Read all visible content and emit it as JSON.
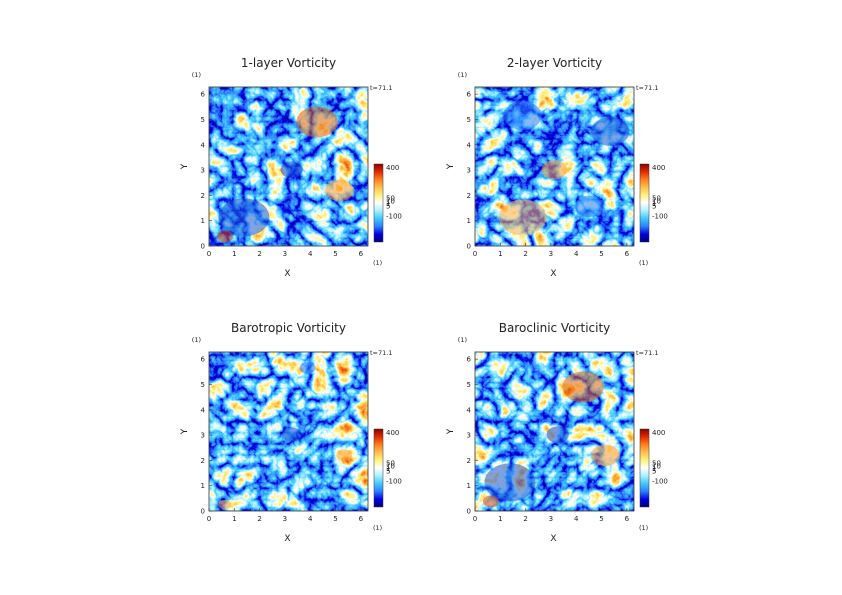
{
  "chart_data": [
    {
      "type": "heatmap",
      "title": "1-layer Vorticity",
      "xlabel": "X",
      "ylabel": "Y",
      "x_unit": "(1)",
      "y_unit": "(1)",
      "xlim": [
        0,
        6.283
      ],
      "ylim": [
        0,
        6.283
      ],
      "x_ticks": [
        "0",
        "1",
        "2",
        "3",
        "4",
        "5",
        "6"
      ],
      "y_ticks": [
        "0",
        "1",
        "2",
        "3",
        "4",
        "5",
        "6"
      ],
      "time_label": "t=71.1",
      "colorbar_labels": [
        "400",
        "50",
        "10",
        "1",
        "5",
        "-100"
      ],
      "colormap": [
        "#00007f",
        "#0000e0",
        "#2f7fff",
        "#3fc8ff",
        "#aaf0ff",
        "#ffffff",
        "#fff27f",
        "#ffc04d",
        "#ff7f1f",
        "#e02b00",
        "#8b0000"
      ],
      "features": [
        "positive eddies top-right",
        "negative vortex center",
        "negative filaments bottom-left"
      ]
    },
    {
      "type": "heatmap",
      "title": "2-layer Vorticity",
      "xlabel": "X",
      "ylabel": "Y",
      "x_unit": "(1)",
      "y_unit": "(1)",
      "xlim": [
        0,
        6.283
      ],
      "ylim": [
        0,
        6.283
      ],
      "x_ticks": [
        "0",
        "1",
        "2",
        "3",
        "4",
        "5",
        "6"
      ],
      "y_ticks": [
        "0",
        "1",
        "2",
        "3",
        "4",
        "5",
        "6"
      ],
      "time_label": "t=71.1",
      "colorbar_labels": [
        "400",
        "50",
        "10",
        "1",
        "5",
        "-100"
      ],
      "colormap": [
        "#00007f",
        "#0000e0",
        "#2f7fff",
        "#3fc8ff",
        "#aaf0ff",
        "#ffffff",
        "#fff27f",
        "#ffc04d",
        "#ff7f1f",
        "#e02b00",
        "#8b0000"
      ],
      "features": [
        "positive vortex center",
        "negative vortex right",
        "positive filaments bottom"
      ]
    },
    {
      "type": "heatmap",
      "title": "Barotropic Vorticity",
      "xlabel": "X",
      "ylabel": "Y",
      "x_unit": "(1)",
      "y_unit": "(1)",
      "xlim": [
        0,
        6.283
      ],
      "ylim": [
        0,
        6.283
      ],
      "x_ticks": [
        "0",
        "1",
        "2",
        "3",
        "4",
        "5",
        "6"
      ],
      "y_ticks": [
        "0",
        "1",
        "2",
        "3",
        "4",
        "5",
        "6"
      ],
      "time_label": "t=71.1",
      "colorbar_labels": [
        "400",
        "50",
        "10",
        "1",
        "5",
        "-100"
      ],
      "colormap": [
        "#00007f",
        "#0000e0",
        "#2f7fff",
        "#3fc8ff",
        "#aaf0ff",
        "#ffffff",
        "#fff27f",
        "#ffc04d",
        "#ff7f1f",
        "#e02b00",
        "#8b0000"
      ],
      "features": [
        "pale turbulent field",
        "negative vortex center",
        "small positive eddies"
      ]
    },
    {
      "type": "heatmap",
      "title": "Baroclinic Vorticity",
      "xlabel": "X",
      "ylabel": "Y",
      "x_unit": "(1)",
      "y_unit": "(1)",
      "xlim": [
        0,
        6.283
      ],
      "ylim": [
        0,
        6.283
      ],
      "x_ticks": [
        "0",
        "1",
        "2",
        "3",
        "4",
        "5",
        "6"
      ],
      "y_ticks": [
        "0",
        "1",
        "2",
        "3",
        "4",
        "5",
        "6"
      ],
      "time_label": "t=71.1",
      "colorbar_labels": [
        "400",
        "50",
        "10",
        "1",
        "5",
        "-100"
      ],
      "colormap": [
        "#00007f",
        "#0000e0",
        "#2f7fff",
        "#3fc8ff",
        "#aaf0ff",
        "#ffffff",
        "#fff27f",
        "#ffc04d",
        "#ff7f1f",
        "#e02b00",
        "#8b0000"
      ],
      "features": [
        "positive eddies top-right",
        "negative vortex center",
        "negative filaments bottom-left"
      ]
    }
  ]
}
